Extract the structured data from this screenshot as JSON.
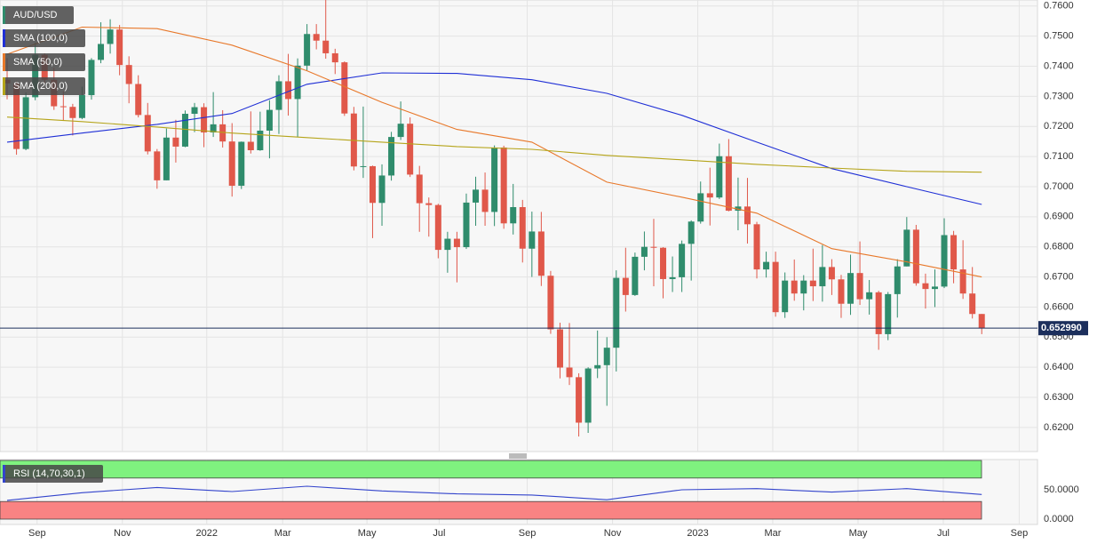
{
  "chart_data": [
    {
      "type": "candlestick",
      "title": "AUD/USD",
      "up_color": "#2f8c6c",
      "down_color": "#e0584a",
      "grid": true,
      "xlim": [
        -0.76,
        109.95
      ],
      "xticks": [
        {
          "value": 3.2,
          "label": "Sep"
        },
        {
          "value": 12.3,
          "label": "Nov"
        },
        {
          "value": 21.3,
          "label": "2022"
        },
        {
          "value": 29.4,
          "label": "Mar"
        },
        {
          "value": 38.4,
          "label": "May"
        },
        {
          "value": 46.1,
          "label": "Jul"
        },
        {
          "value": 55.5,
          "label": "Sep"
        },
        {
          "value": 64.6,
          "label": "Nov"
        },
        {
          "value": 73.7,
          "label": "2023"
        },
        {
          "value": 81.7,
          "label": "Mar"
        },
        {
          "value": 90.8,
          "label": "May"
        },
        {
          "value": 99.9,
          "label": "Jul"
        },
        {
          "value": 108.0,
          "label": "Sep"
        }
      ],
      "ylim": [
        0.612,
        0.762
      ],
      "yticks": [
        {
          "value": 0.62,
          "label": "0.6200"
        },
        {
          "value": 0.63,
          "label": "0.6300"
        },
        {
          "value": 0.64,
          "label": "0.6400"
        },
        {
          "value": 0.65,
          "label": "0.6500"
        },
        {
          "value": 0.66,
          "label": "0.6600"
        },
        {
          "value": 0.67,
          "label": "0.6700"
        },
        {
          "value": 0.68,
          "label": "0.6800"
        },
        {
          "value": 0.69,
          "label": "0.6900"
        },
        {
          "value": 0.7,
          "label": "0.7000"
        },
        {
          "value": 0.71,
          "label": "0.7100"
        },
        {
          "value": 0.72,
          "label": "0.7200"
        },
        {
          "value": 0.73,
          "label": "0.7300"
        },
        {
          "value": 0.74,
          "label": "0.7400"
        },
        {
          "value": 0.75,
          "label": "0.7500"
        },
        {
          "value": 0.76,
          "label": "0.7600"
        }
      ],
      "last_price": {
        "value": 0.65299,
        "label": "0.652990"
      },
      "open": [
        0.7355,
        0.7343,
        0.7125,
        0.7297,
        0.7438,
        0.7355,
        0.7267,
        0.7265,
        0.7228,
        0.7304,
        0.7421,
        0.7474,
        0.7522,
        0.7404,
        0.7341,
        0.7238,
        0.7117,
        0.7021,
        0.7163,
        0.7133,
        0.7242,
        0.7264,
        0.718,
        0.7207,
        0.715,
        0.7003,
        0.7149,
        0.7121,
        0.7186,
        0.7255,
        0.735,
        0.7291,
        0.7402,
        0.7507,
        0.7485,
        0.7443,
        0.7413,
        0.7243,
        0.7067,
        0.7068,
        0.6946,
        0.7037,
        0.7165,
        0.7209,
        0.704,
        0.6945,
        0.6939,
        0.679,
        0.6827,
        0.6799,
        0.6947,
        0.699,
        0.6916,
        0.713,
        0.6878,
        0.6932,
        0.6794,
        0.6851,
        0.6704,
        0.6526,
        0.6399,
        0.6367,
        0.6216,
        0.6396,
        0.6407,
        0.6465,
        0.6697,
        0.664,
        0.6767,
        0.68,
        0.6797,
        0.6693,
        0.6699,
        0.681,
        0.6884,
        0.6978,
        0.6964,
        0.7101,
        0.692,
        0.6934,
        0.6875,
        0.6725,
        0.675,
        0.6583,
        0.6688,
        0.6645,
        0.6688,
        0.6669,
        0.6733,
        0.6692,
        0.6611,
        0.6713,
        0.6626,
        0.6649,
        0.651,
        0.6643,
        0.6735,
        0.6857,
        0.6679,
        0.666,
        0.6668,
        0.6839,
        0.6725,
        0.6645,
        0.6577
      ],
      "high": [
        0.7427,
        0.735,
        0.7313,
        0.7478,
        0.7443,
        0.7395,
        0.7317,
        0.7275,
        0.7332,
        0.7427,
        0.7546,
        0.7556,
        0.7537,
        0.7433,
        0.737,
        0.7278,
        0.7125,
        0.7193,
        0.7222,
        0.7253,
        0.7278,
        0.7277,
        0.7314,
        0.7254,
        0.7211,
        0.715,
        0.725,
        0.7249,
        0.7287,
        0.737,
        0.7441,
        0.7426,
        0.754,
        0.754,
        0.7661,
        0.7458,
        0.7416,
        0.7265,
        0.7266,
        0.707,
        0.7074,
        0.7182,
        0.7283,
        0.723,
        0.7069,
        0.6964,
        0.6943,
        0.685,
        0.685,
        0.6977,
        0.7033,
        0.7047,
        0.7137,
        0.7136,
        0.7009,
        0.6956,
        0.6917,
        0.6916,
        0.672,
        0.6548,
        0.6547,
        0.638,
        0.64,
        0.6522,
        0.65,
        0.6722,
        0.6797,
        0.6781,
        0.6851,
        0.6893,
        0.6799,
        0.6768,
        0.6821,
        0.6888,
        0.7017,
        0.7063,
        0.7143,
        0.7158,
        0.703,
        0.7029,
        0.6883,
        0.6784,
        0.6784,
        0.6715,
        0.6758,
        0.6706,
        0.6794,
        0.6806,
        0.6759,
        0.6707,
        0.6774,
        0.6818,
        0.669,
        0.6654,
        0.665,
        0.6759,
        0.6899,
        0.6873,
        0.6711,
        0.6725,
        0.6895,
        0.6853,
        0.6822,
        0.6733,
        0.6577
      ],
      "low": [
        0.729,
        0.7106,
        0.7121,
        0.7287,
        0.7343,
        0.7255,
        0.722,
        0.717,
        0.7224,
        0.7289,
        0.741,
        0.7442,
        0.737,
        0.7277,
        0.723,
        0.7107,
        0.6993,
        0.7021,
        0.708,
        0.7131,
        0.7181,
        0.7131,
        0.7165,
        0.713,
        0.6967,
        0.6992,
        0.711,
        0.7119,
        0.7094,
        0.7175,
        0.7236,
        0.7165,
        0.7386,
        0.7456,
        0.7425,
        0.7374,
        0.7235,
        0.7054,
        0.7029,
        0.6829,
        0.687,
        0.702,
        0.7155,
        0.7032,
        0.685,
        0.6834,
        0.6762,
        0.6714,
        0.6682,
        0.6793,
        0.687,
        0.687,
        0.6869,
        0.686,
        0.6841,
        0.6748,
        0.67,
        0.667,
        0.6511,
        0.6363,
        0.6341,
        0.617,
        0.6182,
        0.6364,
        0.6272,
        0.6386,
        0.6585,
        0.6637,
        0.6722,
        0.6669,
        0.6629,
        0.665,
        0.665,
        0.6688,
        0.6877,
        0.6871,
        0.6959,
        0.6918,
        0.6855,
        0.6811,
        0.6695,
        0.6698,
        0.6568,
        0.6564,
        0.6621,
        0.6589,
        0.662,
        0.6618,
        0.664,
        0.6564,
        0.6574,
        0.6607,
        0.6575,
        0.6458,
        0.649,
        0.6565,
        0.6735,
        0.6671,
        0.6595,
        0.66,
        0.6663,
        0.6679,
        0.6627,
        0.6562,
        0.651
      ],
      "close": [
        0.7343,
        0.7125,
        0.7297,
        0.7438,
        0.7355,
        0.7267,
        0.7265,
        0.7228,
        0.7304,
        0.7421,
        0.7474,
        0.7522,
        0.7404,
        0.7341,
        0.7238,
        0.7117,
        0.7021,
        0.7163,
        0.7133,
        0.7242,
        0.7264,
        0.718,
        0.7207,
        0.715,
        0.7003,
        0.7149,
        0.7121,
        0.7186,
        0.7255,
        0.735,
        0.7291,
        0.7402,
        0.7507,
        0.7485,
        0.7443,
        0.7413,
        0.7243,
        0.7067,
        0.7068,
        0.6946,
        0.7037,
        0.7165,
        0.7209,
        0.704,
        0.6945,
        0.6939,
        0.679,
        0.6827,
        0.6799,
        0.6947,
        0.699,
        0.6916,
        0.713,
        0.6878,
        0.6932,
        0.6794,
        0.6851,
        0.6704,
        0.6526,
        0.6399,
        0.6367,
        0.6216,
        0.6396,
        0.6407,
        0.6465,
        0.6697,
        0.664,
        0.6767,
        0.68,
        0.6797,
        0.6693,
        0.6699,
        0.681,
        0.6884,
        0.6978,
        0.6964,
        0.7101,
        0.692,
        0.6934,
        0.6875,
        0.6725,
        0.675,
        0.6583,
        0.6688,
        0.6645,
        0.6688,
        0.6669,
        0.6733,
        0.6692,
        0.6611,
        0.6713,
        0.6626,
        0.6649,
        0.651,
        0.6643,
        0.6735,
        0.6857,
        0.6679,
        0.666,
        0.6668,
        0.6839,
        0.6725,
        0.6645,
        0.6577,
        0.653
      ],
      "series": [
        {
          "name": "SMA (100,0)",
          "color": "#1f2fd6",
          "x": [
            0,
            8,
            16,
            24,
            32,
            40,
            48,
            56,
            64,
            72,
            80,
            88,
            96,
            104
          ],
          "values": [
            0.7148,
            0.7178,
            0.7207,
            0.7243,
            0.734,
            0.7378,
            0.7376,
            0.7355,
            0.731,
            0.7237,
            0.7148,
            0.706,
            0.7,
            0.6941
          ]
        },
        {
          "name": "SMA (50,0)",
          "color": "#e8782a",
          "x": [
            0,
            8,
            16,
            24,
            32,
            40,
            48,
            56,
            64,
            72,
            80,
            88,
            96,
            104
          ],
          "values": [
            0.744,
            0.753,
            0.7525,
            0.747,
            0.7385,
            0.728,
            0.719,
            0.7148,
            0.7015,
            0.6965,
            0.6912,
            0.6794,
            0.675,
            0.67
          ]
        },
        {
          "name": "SMA (200,0)",
          "color": "#b5a419",
          "x": [
            0,
            8,
            16,
            24,
            32,
            40,
            48,
            56,
            64,
            72,
            80,
            88,
            96,
            104
          ],
          "values": [
            0.7231,
            0.7216,
            0.7198,
            0.7178,
            0.7163,
            0.7148,
            0.7133,
            0.7124,
            0.7104,
            0.7089,
            0.7074,
            0.7062,
            0.7051,
            0.7048
          ]
        }
      ]
    },
    {
      "type": "line",
      "ylim": [
        0,
        100
      ],
      "yticks": [
        {
          "value": 0,
          "label": "0.0000"
        },
        {
          "value": 50,
          "label": "50.0000"
        }
      ],
      "bands": [
        {
          "range": [
            70,
            100
          ],
          "color": "#7ff27f"
        },
        {
          "range": [
            0,
            30
          ],
          "color": "#f98383"
        }
      ],
      "series": [
        {
          "name": "RSI (14,70,30,1)",
          "color": "#3344cc",
          "x": [
            0,
            8,
            16,
            24,
            32,
            40,
            48,
            56,
            64,
            72,
            80,
            88,
            96,
            104
          ],
          "values": [
            32,
            45,
            54,
            47,
            56,
            48,
            43,
            41,
            33,
            50,
            52,
            46,
            52,
            42
          ]
        }
      ]
    }
  ]
}
